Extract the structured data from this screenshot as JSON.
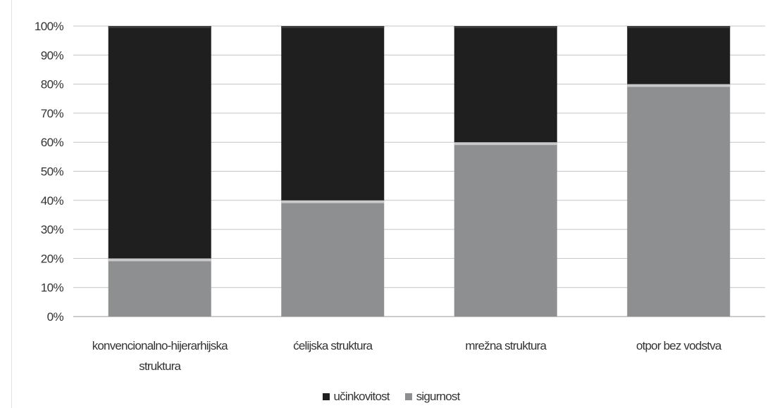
{
  "chart_data": {
    "type": "bar",
    "stacked": true,
    "categories": [
      [
        "konvencionalno-hijerarhijska",
        "struktura"
      ],
      [
        "ćelijska struktura"
      ],
      [
        "mrežna struktura"
      ],
      [
        "otpor bez vodstva"
      ]
    ],
    "series": [
      {
        "name": "sigurnost",
        "values": [
          20,
          40,
          60,
          80
        ],
        "color": "#8e8f91"
      },
      {
        "name": "učinkovitost",
        "values": [
          80,
          60,
          40,
          20
        ],
        "color": "#1f1f1f"
      }
    ],
    "legend_order": [
      1,
      0
    ],
    "ylim": [
      0,
      100
    ],
    "yticks": [
      "0%",
      "10%",
      "20%",
      "30%",
      "40%",
      "50%",
      "60%",
      "70%",
      "80%",
      "90%",
      "100%"
    ],
    "grid": true,
    "legend_position": "bottom"
  }
}
